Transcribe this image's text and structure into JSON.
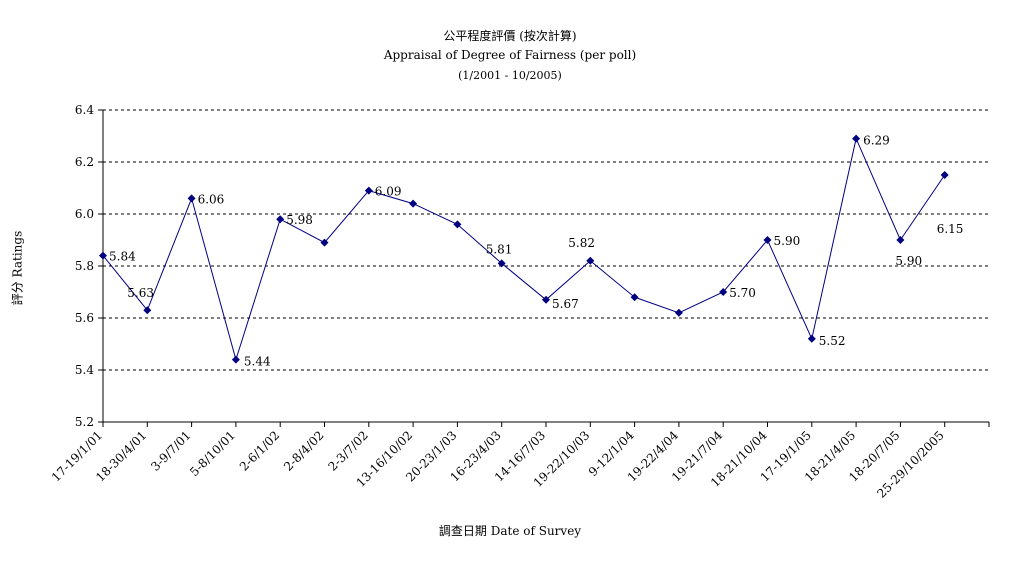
{
  "chart_data": {
    "type": "line",
    "title_zh": "公平程度評價 (按次計算)",
    "title_en": "Appraisal of Degree of Fairness (per poll)",
    "subtitle": "(1/2001 - 10/2005)",
    "xlabel": "調查日期 Date of Survey",
    "ylabel": "評分 Ratings",
    "ylim": [
      5.2,
      6.4
    ],
    "yticks": [
      "5.2",
      "5.4",
      "5.6",
      "5.8",
      "6.0",
      "6.2",
      "6.4"
    ],
    "grid": true,
    "x": [
      "17-19/1/01",
      "18-30/4/01",
      "3-9/7/01",
      "5-8/10/01",
      "2-6/1/02",
      "2-8/4/02",
      "2-3/7/02",
      "13-16/10/02",
      "20-23/1/03",
      "16-23/4/03",
      "14-16/7/03",
      "19-22/10/03",
      "9-12/1/04",
      "19-22/4/04",
      "19-21/7/04",
      "18-21/10/04",
      "17-19/1/05",
      "18-21/4/05",
      "18-20/7/05",
      "25-29/10/2005"
    ],
    "series": [
      {
        "values": [
          5.84,
          5.63,
          6.06,
          5.44,
          5.98,
          5.89,
          6.09,
          6.04,
          5.96,
          5.81,
          5.67,
          5.82,
          5.68,
          5.62,
          5.7,
          5.9,
          5.52,
          6.29,
          5.9,
          6.15
        ],
        "labels": [
          "5.84",
          "5.63",
          "6.06",
          "5.44",
          "5.98",
          "",
          "6.09",
          "",
          "",
          "5.81",
          "5.67",
          "5.82",
          "",
          "",
          "5.70",
          "5.90",
          "5.52",
          "6.29",
          "5.90",
          "6.15"
        ],
        "color": "#000080"
      }
    ]
  }
}
